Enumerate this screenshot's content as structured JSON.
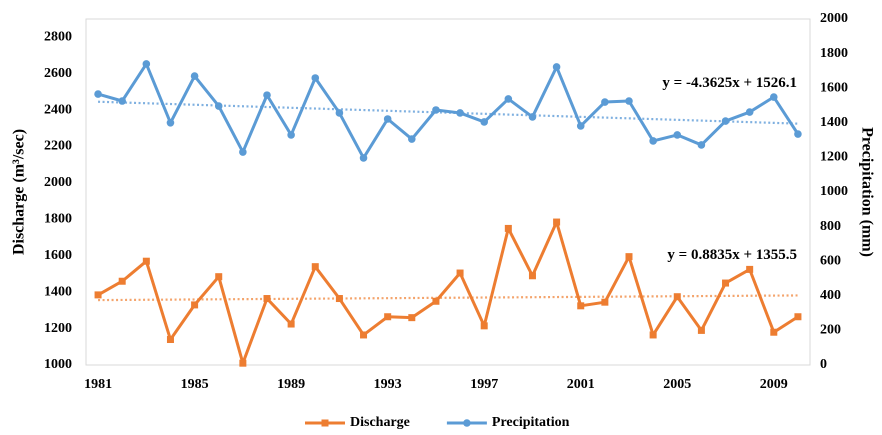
{
  "chart_data": {
    "type": "line",
    "categories": [
      1981,
      null,
      null,
      null,
      1985,
      null,
      null,
      null,
      1989,
      null,
      null,
      null,
      1993,
      null,
      null,
      null,
      1997,
      null,
      null,
      null,
      2001,
      null,
      null,
      null,
      2005,
      null,
      null,
      null,
      2009,
      null
    ],
    "y_label": "Discharge (m³/sec)",
    "y2_label": "Precipitation (mm)",
    "ylim": [
      1000,
      2900
    ],
    "yticks": [
      1000,
      1200,
      1400,
      1600,
      1800,
      2000,
      2200,
      2400,
      2600,
      2800
    ],
    "y2lim": [
      0,
      2000
    ],
    "y2ticks": [
      0,
      200,
      400,
      600,
      800,
      1000,
      1200,
      1400,
      1600,
      1800,
      2000
    ],
    "grid": false,
    "legend": "bottom",
    "series": [
      {
        "name": "Discharge",
        "color": "#ed7d31",
        "marker": "square",
        "values": [
          1385,
          1460,
          1570,
          1140,
          1330,
          1485,
          1010,
          1365,
          1225,
          1540,
          1365,
          1165,
          1265,
          1260,
          1350,
          1505,
          1215,
          1750,
          1490,
          1785,
          1325,
          1345,
          1595,
          1165,
          1375,
          1190,
          1450,
          1525,
          1180,
          1265
        ]
      },
      {
        "name": "Precipitation",
        "color": "#5b9bd5",
        "marker": "circle",
        "axis": "y2",
        "values": [
          1566,
          1526,
          1740,
          1400,
          1670,
          1497,
          1231,
          1560,
          1330,
          1659,
          1457,
          1197,
          1422,
          1306,
          1474,
          1457,
          1405,
          1538,
          1434,
          1723,
          1382,
          1520,
          1526,
          1295,
          1330,
          1272,
          1410,
          1462,
          1549,
          1335
        ]
      }
    ],
    "trendlines": [
      {
        "series": 0,
        "slope": 0.8835,
        "intercept": 1355.5,
        "color": "#f4a46c",
        "label": "y = 0.8835x + 1355.5"
      },
      {
        "series": 1,
        "slope": -4.3625,
        "intercept": 1526.1,
        "color": "#7fb0e0",
        "label": "y = -4.3625x + 1526.1"
      }
    ]
  }
}
